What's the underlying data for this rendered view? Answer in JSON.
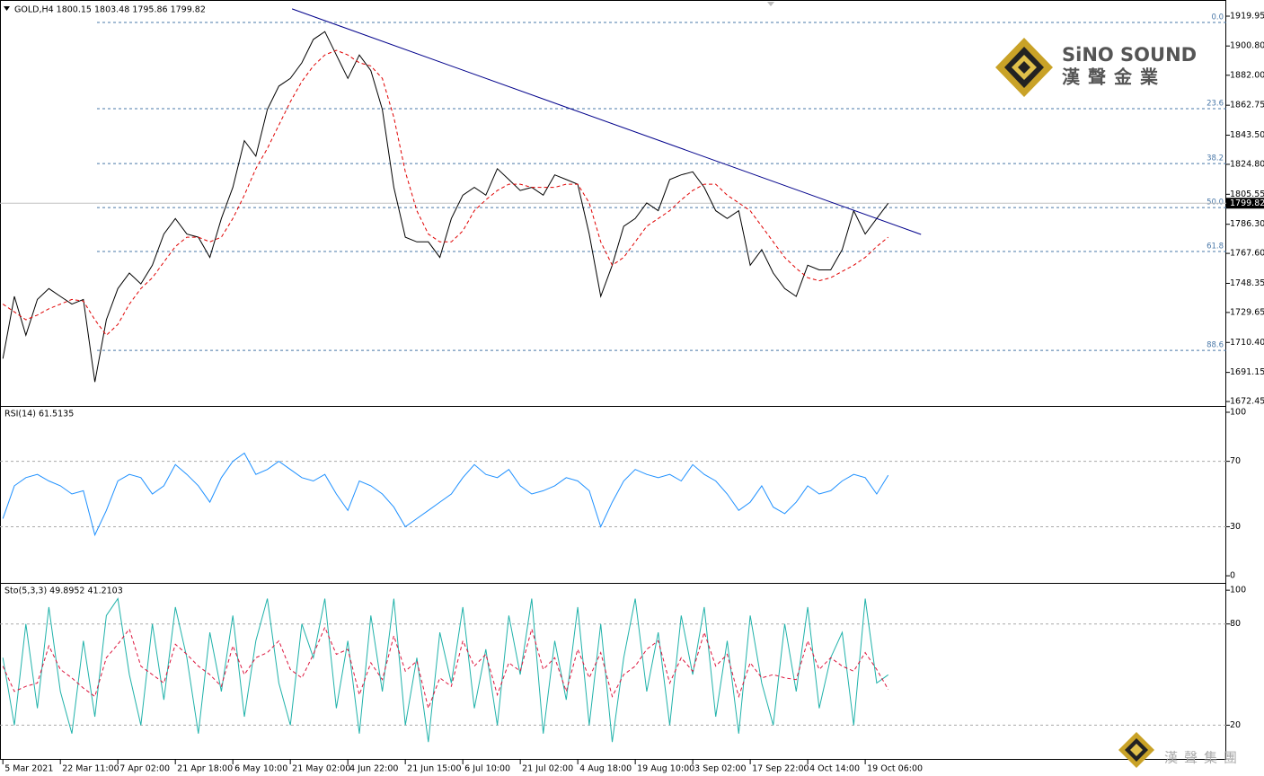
{
  "logo": {
    "name": "SiNO SOUND",
    "subtitle": "漢聲金業",
    "footer": "漢聲集團"
  },
  "chart_data": [
    {
      "type": "line",
      "label": "GOLD,H4  1800.15 1803.48 1795.86 1799.82",
      "x": [
        0,
        2,
        4,
        6,
        8,
        10,
        12,
        14,
        16,
        18,
        20,
        22,
        24,
        26,
        28,
        30,
        32,
        34,
        36,
        38,
        40,
        42,
        44,
        46,
        48,
        50,
        52,
        54,
        56,
        58,
        60,
        62,
        64,
        66,
        68,
        70,
        72,
        74,
        76,
        78,
        80,
        82,
        84,
        86,
        88,
        90,
        92,
        94,
        96,
        98,
        100,
        102,
        104,
        106,
        108,
        110,
        112,
        114,
        116,
        118,
        120,
        122,
        124,
        126,
        128,
        130,
        132,
        134,
        136,
        138,
        140,
        142,
        144,
        146,
        148,
        150,
        152,
        154
      ],
      "xlim": [
        -0.5,
        212.8
      ],
      "ylim": [
        1669.6,
        1928.6
      ],
      "yticks": [
        {
          "value": 1919.95,
          "label": "1919.95"
        },
        {
          "value": 1900.8,
          "label": "1900.80"
        },
        {
          "value": 1882,
          "label": "1882.00"
        },
        {
          "value": 1862.75,
          "label": "1862.75"
        },
        {
          "value": 1843.5,
          "label": "1843.50"
        },
        {
          "value": 1824.8,
          "label": "1824.80"
        },
        {
          "value": 1805.55,
          "label": "1805.55"
        },
        {
          "value": 1786.3,
          "label": "1786.30"
        },
        {
          "value": 1767.6,
          "label": "1767.60"
        },
        {
          "value": 1748.35,
          "label": "1748.35"
        },
        {
          "value": 1729.65,
          "label": "1729.65"
        },
        {
          "value": 1710.4,
          "label": "1710.40"
        },
        {
          "value": 1691.15,
          "label": "1691.15"
        },
        {
          "value": 1672.45,
          "label": "1672.45"
        }
      ],
      "current_price": 1799.82,
      "fib_levels": [
        {
          "label": "0.0",
          "value": 1915.9
        },
        {
          "label": "23.6",
          "value": 1860.5
        },
        {
          "label": "38.2",
          "value": 1825.3
        },
        {
          "label": "50.0",
          "value": 1797.0
        },
        {
          "label": "61.8",
          "value": 1768.8
        },
        {
          "label": "88.6",
          "value": 1705.3
        }
      ],
      "trendline": {
        "x": [
          50.3,
          159.7
        ],
        "values": [
          1924.6,
          1779.8
        ],
        "color": "#00008b"
      },
      "series": [
        {
          "color": "#000000",
          "values": [
            1700,
            1740,
            1715,
            1738,
            1745,
            1740,
            1735,
            1738,
            1685,
            1725,
            1745,
            1755,
            1748,
            1760,
            1780,
            1790,
            1780,
            1778,
            1765,
            1790,
            1810,
            1840,
            1830,
            1860,
            1875,
            1880,
            1890,
            1905,
            1910,
            1895,
            1880,
            1895,
            1885,
            1860,
            1810,
            1778,
            1775,
            1775,
            1765,
            1790,
            1805,
            1810,
            1805,
            1822,
            1815,
            1808,
            1810,
            1805,
            1818,
            1815,
            1812,
            1780,
            1740,
            1760,
            1785,
            1790,
            1800,
            1795,
            1815,
            1818,
            1820,
            1810,
            1795,
            1790,
            1795,
            1760,
            1770,
            1755,
            1745,
            1740,
            1760,
            1757,
            1757,
            1770,
            1795,
            1780,
            1790,
            1799.82
          ]
        },
        {
          "color": "#e00000",
          "dashed": true,
          "values": [
            1735,
            1730,
            1725,
            1728,
            1732,
            1735,
            1738,
            1737,
            1725,
            1715,
            1722,
            1735,
            1745,
            1752,
            1762,
            1772,
            1778,
            1778,
            1775,
            1778,
            1790,
            1805,
            1822,
            1835,
            1850,
            1865,
            1878,
            1888,
            1895,
            1898,
            1895,
            1890,
            1888,
            1880,
            1855,
            1820,
            1795,
            1780,
            1775,
            1775,
            1782,
            1795,
            1802,
            1808,
            1812,
            1812,
            1810,
            1810,
            1810,
            1812,
            1812,
            1800,
            1775,
            1760,
            1765,
            1775,
            1785,
            1790,
            1795,
            1802,
            1808,
            1812,
            1812,
            1805,
            1800,
            1795,
            1785,
            1775,
            1765,
            1758,
            1752,
            1750,
            1752,
            1756,
            1760,
            1765,
            1772,
            1778
          ]
        }
      ]
    },
    {
      "type": "line",
      "label": "RSI(14) 61.5135",
      "x": [
        0,
        2,
        4,
        6,
        8,
        10,
        12,
        14,
        16,
        18,
        20,
        22,
        24,
        26,
        28,
        30,
        32,
        34,
        36,
        38,
        40,
        42,
        44,
        46,
        48,
        50,
        52,
        54,
        56,
        58,
        60,
        62,
        64,
        66,
        68,
        70,
        72,
        74,
        76,
        78,
        80,
        82,
        84,
        86,
        88,
        90,
        92,
        94,
        96,
        98,
        100,
        102,
        104,
        106,
        108,
        110,
        112,
        114,
        116,
        118,
        120,
        122,
        124,
        126,
        128,
        130,
        132,
        134,
        136,
        138,
        140,
        142,
        144,
        146,
        148,
        150,
        152,
        154
      ],
      "xlim": [
        -0.5,
        212.8
      ],
      "ylim": [
        -3.8,
        103.3
      ],
      "yticks": [
        100,
        70,
        30,
        0
      ],
      "levels": [
        70,
        30
      ],
      "series": [
        {
          "color": "#1e90ff",
          "values": [
            35,
            55,
            60,
            62,
            58,
            55,
            50,
            52,
            25,
            40,
            58,
            62,
            60,
            50,
            55,
            68,
            62,
            55,
            45,
            60,
            70,
            75,
            62,
            65,
            70,
            65,
            60,
            58,
            62,
            50,
            40,
            58,
            55,
            50,
            42,
            30,
            35,
            40,
            45,
            50,
            60,
            68,
            62,
            60,
            65,
            55,
            50,
            52,
            55,
            60,
            58,
            52,
            30,
            45,
            58,
            65,
            62,
            60,
            62,
            58,
            68,
            62,
            58,
            50,
            40,
            45,
            55,
            42,
            38,
            45,
            55,
            50,
            52,
            58,
            62,
            60,
            50,
            61.5135
          ]
        }
      ]
    },
    {
      "type": "line",
      "label": "Sto(5,3,3) 49.8952 41.2103",
      "x": [
        0,
        2,
        4,
        6,
        8,
        10,
        12,
        14,
        16,
        18,
        20,
        22,
        24,
        26,
        28,
        30,
        32,
        34,
        36,
        38,
        40,
        42,
        44,
        46,
        48,
        50,
        52,
        54,
        56,
        58,
        60,
        62,
        64,
        66,
        68,
        70,
        72,
        74,
        76,
        78,
        80,
        82,
        84,
        86,
        88,
        90,
        92,
        94,
        96,
        98,
        100,
        102,
        104,
        106,
        108,
        110,
        112,
        114,
        116,
        118,
        120,
        122,
        124,
        126,
        128,
        130,
        132,
        134,
        136,
        138,
        140,
        142,
        144,
        146,
        148,
        150,
        152,
        154
      ],
      "xlim": [
        -0.5,
        212.8
      ],
      "ylim": [
        0,
        103.8
      ],
      "yticks": [
        100,
        80,
        20
      ],
      "levels": [
        80,
        20
      ],
      "xticks": [
        {
          "value": 0,
          "label": "5 Mar 2021"
        },
        {
          "value": 10,
          "label": "22 Mar 11:00"
        },
        {
          "value": 20,
          "label": "7 Apr 02:00"
        },
        {
          "value": 30,
          "label": "21 Apr 18:00"
        },
        {
          "value": 40,
          "label": "6 May 10:00"
        },
        {
          "value": 50,
          "label": "21 May 02:00"
        },
        {
          "value": 60,
          "label": "4 Jun 22:00"
        },
        {
          "value": 70,
          "label": "21 Jun 15:00"
        },
        {
          "value": 80,
          "label": "6 Jul 10:00"
        },
        {
          "value": 90,
          "label": "21 Jul 02:00"
        },
        {
          "value": 100,
          "label": "4 Aug 18:00"
        },
        {
          "value": 110,
          "label": "19 Aug 10:00"
        },
        {
          "value": 120,
          "label": "3 Sep 02:00"
        },
        {
          "value": 130,
          "label": "17 Sep 22:00"
        },
        {
          "value": 140,
          "label": "4 Oct 14:00"
        },
        {
          "value": 150,
          "label": "19 Oct 06:00"
        }
      ],
      "series": [
        {
          "color": "#20b2aa",
          "values": [
            60,
            20,
            80,
            30,
            90,
            40,
            15,
            70,
            25,
            85,
            95,
            50,
            20,
            80,
            35,
            90,
            60,
            15,
            75,
            40,
            85,
            25,
            70,
            95,
            45,
            20,
            80,
            60,
            95,
            30,
            70,
            15,
            85,
            40,
            95,
            20,
            60,
            10,
            75,
            45,
            90,
            30,
            65,
            20,
            85,
            50,
            95,
            15,
            70,
            35,
            90,
            20,
            80,
            10,
            60,
            95,
            40,
            75,
            20,
            85,
            50,
            90,
            25,
            70,
            15,
            85,
            45,
            20,
            80,
            40,
            90,
            30,
            60,
            75,
            20,
            95,
            45,
            49.8952
          ]
        },
        {
          "color": "#dc143c",
          "dashed": true,
          "values": [
            55,
            40,
            43,
            45,
            67,
            53,
            48,
            42,
            37,
            60,
            68,
            77,
            55,
            50,
            45,
            68,
            62,
            55,
            50,
            43,
            67,
            50,
            60,
            63,
            70,
            53,
            48,
            62,
            78,
            62,
            65,
            38,
            57,
            47,
            73,
            52,
            58,
            30,
            48,
            43,
            70,
            55,
            62,
            38,
            57,
            52,
            77,
            53,
            60,
            40,
            65,
            48,
            63,
            37,
            50,
            55,
            65,
            70,
            45,
            60,
            52,
            75,
            55,
            62,
            37,
            57,
            48,
            50,
            48,
            47,
            70,
            53,
            60,
            55,
            52,
            63,
            53,
            41.2103
          ]
        }
      ]
    }
  ]
}
